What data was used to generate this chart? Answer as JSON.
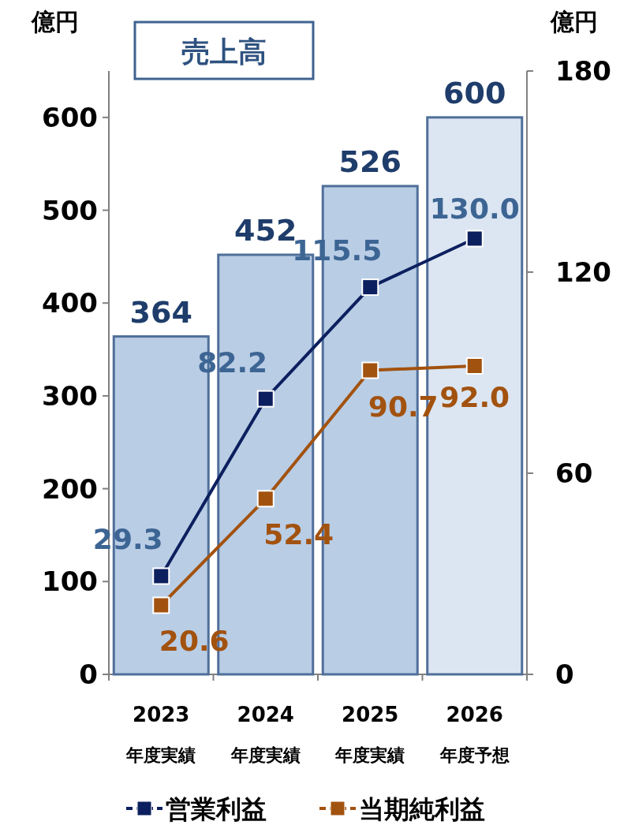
{
  "chart_data": {
    "type": "bar",
    "title": "売上高",
    "ylabel": "億円",
    "y2label": "億円",
    "categories": [
      "2023\n年度実績",
      "2024\n年度実績",
      "2025\n年度実績",
      "2026\n年度予想"
    ],
    "series": [
      {
        "values": [
          364,
          452,
          526,
          600
        ],
        "colors": [
          "#b9cde5",
          "#b9cde5",
          "#b9cde5",
          "#dce6f2"
        ]
      },
      {
        "type": "line",
        "name": "営業利益",
        "axis": "y2",
        "color": "#0c1f5e",
        "values": [
          29.3,
          82.2,
          115.5,
          130.0
        ],
        "value_labels": [
          "29.3",
          "82.2",
          "115.5",
          "130.0"
        ]
      },
      {
        "type": "line",
        "name": "当期純利益",
        "axis": "y2",
        "color": "#a2520f",
        "values": [
          20.6,
          52.4,
          90.7,
          92.0
        ],
        "value_labels": [
          "20.6",
          "52.4",
          "90.7",
          "92.0"
        ]
      }
    ],
    "ylim": [
      0,
      650
    ],
    "yticks": [
      0,
      100,
      200,
      300,
      400,
      500,
      600
    ],
    "y2lim": [
      0,
      180
    ],
    "y2ticks": [
      0,
      60,
      120,
      180
    ],
    "data_labels": true,
    "marker": "square",
    "legend": "bottom",
    "grid": false
  }
}
